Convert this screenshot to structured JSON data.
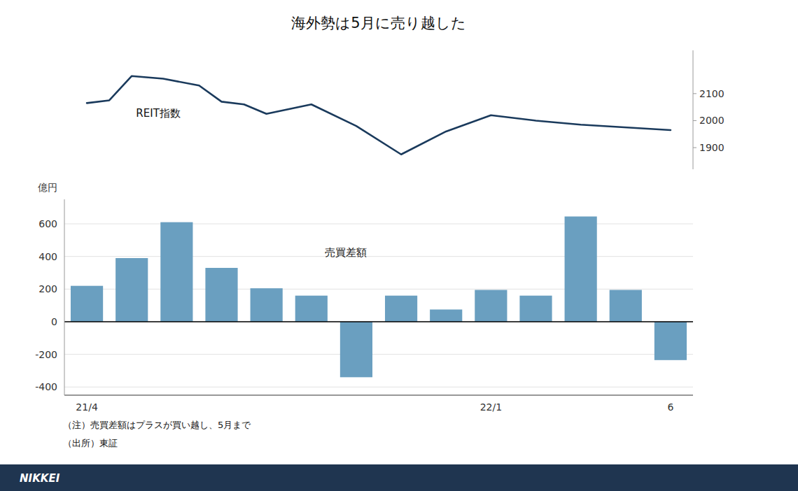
{
  "chart_data": [
    {
      "type": "line",
      "title": "海外勢は5月に売り越した",
      "x": [
        0,
        0.5,
        1,
        1.7,
        2.5,
        3,
        3.5,
        4,
        5,
        6,
        7,
        8,
        9,
        10,
        11,
        13
      ],
      "values": [
        2065,
        2075,
        2165,
        2155,
        2130,
        2070,
        2060,
        2025,
        2060,
        1980,
        1875,
        1960,
        2020,
        2000,
        1985,
        1965
      ],
      "color": "#1a3a5c",
      "xlim": [
        -0.5,
        13.5
      ],
      "ylim": [
        1820,
        2260
      ],
      "yticks": [
        1900,
        2000,
        2100
      ],
      "grid": false,
      "tick_labels": "y",
      "annotations": [
        "REIT指数"
      ]
    },
    {
      "type": "bar",
      "ylabel": "億円",
      "categories": [
        "21/4",
        null,
        null,
        null,
        null,
        null,
        null,
        null,
        null,
        "22/1",
        null,
        null,
        null,
        "6"
      ],
      "values": [
        220,
        390,
        610,
        330,
        205,
        160,
        -340,
        160,
        75,
        195,
        160,
        645,
        195,
        -235
      ],
      "color": "#6a9fc0",
      "ylim": [
        -450,
        750
      ],
      "yticks": [
        -400,
        -200,
        0,
        200,
        400,
        600
      ],
      "grid": true,
      "annotations": [
        "売買差額",
        "（注）売買差額はプラスが買い越し、5月まで",
        "（出所）東証",
        "NIKKEI"
      ]
    }
  ]
}
